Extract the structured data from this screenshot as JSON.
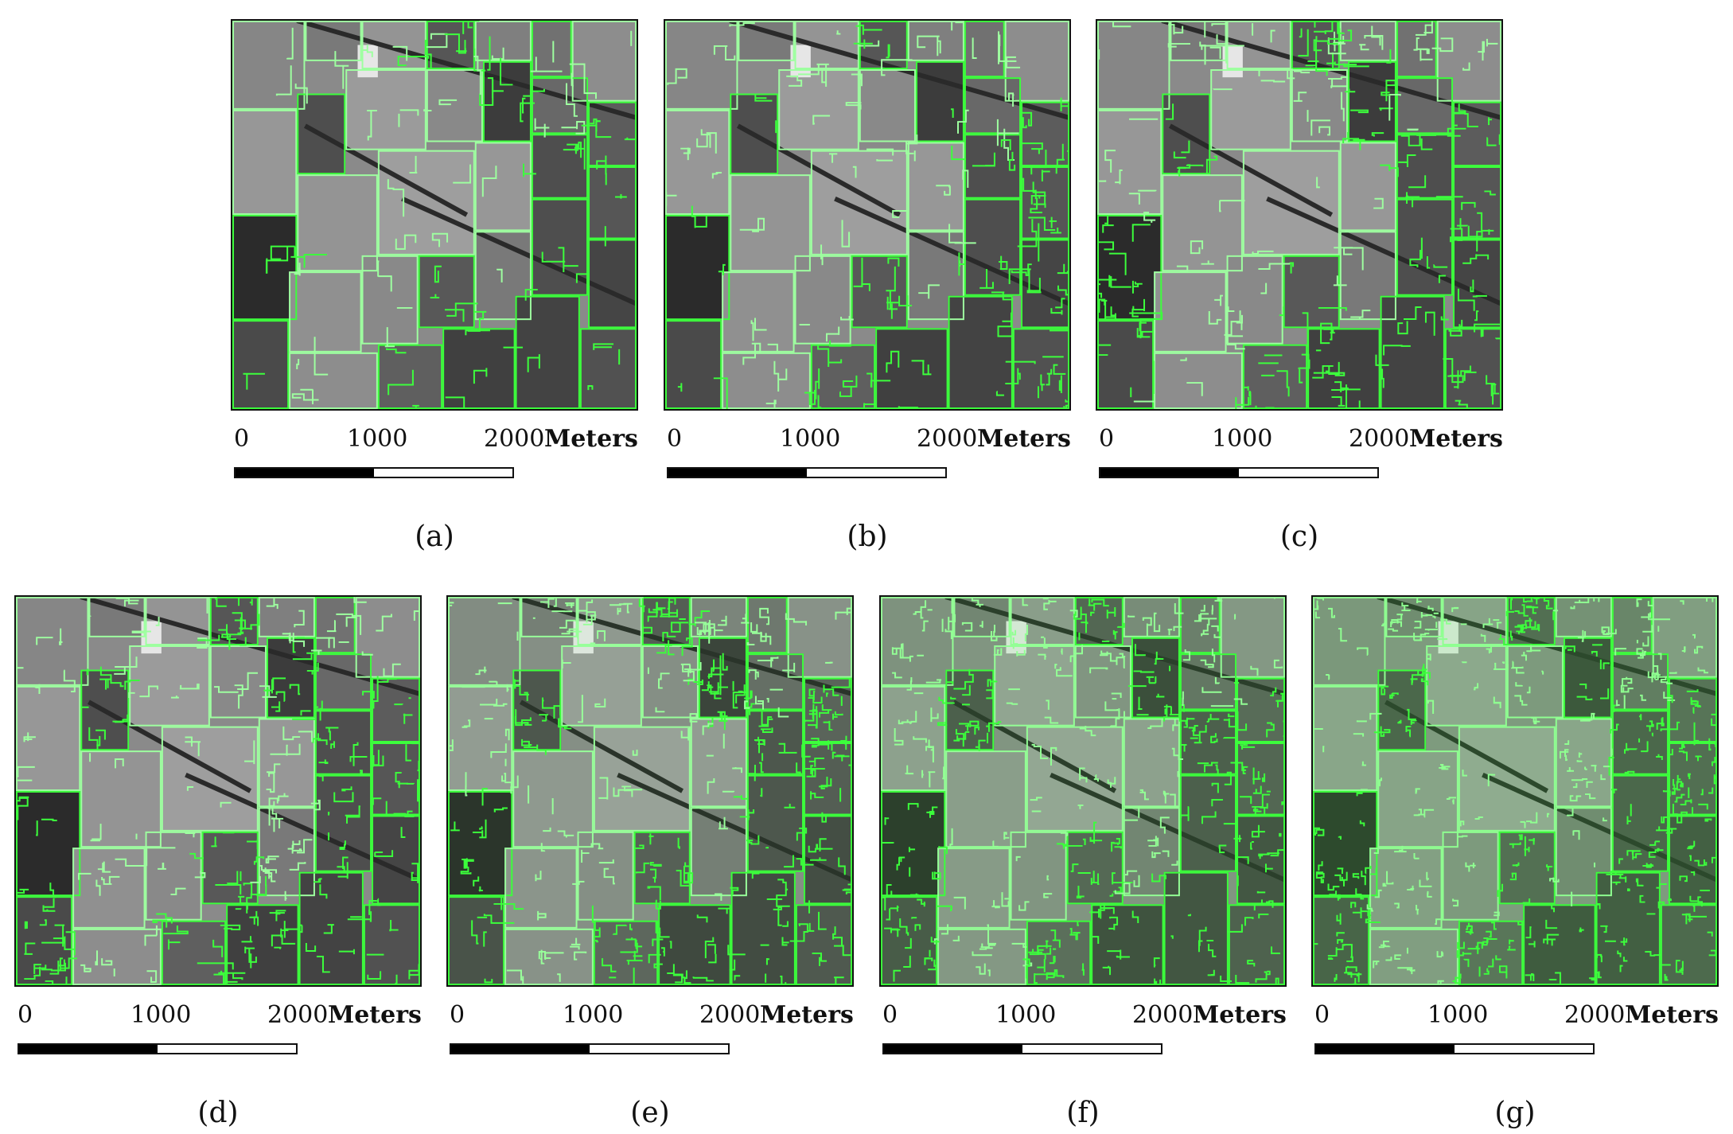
{
  "scale": {
    "tick_0": "0",
    "tick_1000": "1000",
    "tick_2000": "2000",
    "unit": "Meters"
  },
  "colors": {
    "boundary": "#3cff3c",
    "boundary_light": "#9effa0",
    "dark_field": "#1a1a1a",
    "light_field": "#b4b4b4"
  },
  "panels": [
    {
      "caption": "(a)",
      "segment_density": 1
    },
    {
      "caption": "(b)",
      "segment_density": 2
    },
    {
      "caption": "(c)",
      "segment_density": 3
    },
    {
      "caption": "(d)",
      "segment_density": 4
    },
    {
      "caption": "(e)",
      "segment_density": 5
    },
    {
      "caption": "(f)",
      "segment_density": 6
    },
    {
      "caption": "(g)",
      "segment_density": 7
    }
  ]
}
